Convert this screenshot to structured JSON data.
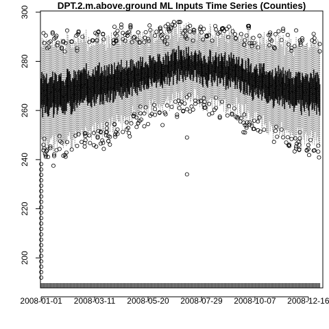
{
  "chart_data": {
    "type": "boxplot",
    "title": "DPT.2.m.above.ground ML Inputs Time Series (Counties)",
    "xlabel": "",
    "ylabel": "",
    "ylim": [
      187.8,
      300.5
    ],
    "y_ticks": [
      200,
      220,
      240,
      260,
      280,
      300
    ],
    "y_tick_labels": [
      "200",
      "220",
      "240",
      "260",
      "280",
      "300"
    ],
    "x_range": [
      "2007-12-31",
      "2009-01-04"
    ],
    "x_ticks": [
      "2008-01-01",
      "2008-03-11",
      "2008-05-20",
      "2008-07-29",
      "2008-10-07",
      "2008-12-16"
    ],
    "x_tick_labels": [
      "2008-01-01",
      "2008-03-11",
      "2008-05-20",
      "2008-07-29",
      "2008-10-07",
      "2008-12-16"
    ],
    "series_summary": {
      "start_date": "2008-01-01",
      "end_date": "2008-12-31",
      "frequency": "daily, one box per day across counties",
      "monthly_median_approx": [
        266,
        267,
        270,
        271,
        274,
        276,
        279,
        277,
        276,
        273,
        270,
        267
      ],
      "notable_outliers": [
        {
          "date": "2008-01-01",
          "min_value": 192
        },
        {
          "date": "2008-07-10",
          "value": 234
        },
        {
          "date": "2008-07-10",
          "value": 249
        }
      ],
      "max_observed_approx": 296
    },
    "colors": {
      "box": "#000000",
      "whisker": "#555555",
      "background": "#ffffff",
      "rug": "#666666"
    }
  }
}
